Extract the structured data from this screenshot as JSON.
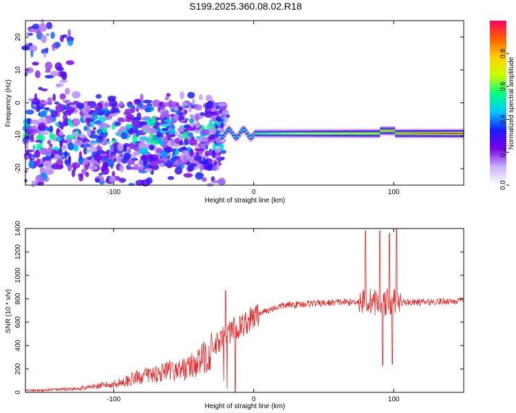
{
  "title": "S199.2025.360.08.02.R18",
  "chart_data": [
    {
      "type": "heatmap",
      "name": "spectrogram",
      "xlabel": "Height of straight line (km)",
      "ylabel": "Frequency (Hz)",
      "xlim": [
        -163,
        150
      ],
      "ylim": [
        -25,
        25
      ],
      "xticks": [
        -100,
        0,
        100
      ],
      "yticks": [
        20,
        10,
        0,
        -10,
        -20
      ],
      "colorbar": {
        "label": "Normalized spectral amplitude",
        "range": [
          0,
          1
        ],
        "ticks": [
          "0.0",
          "0.2",
          "0.4",
          "0.6",
          "0.8"
        ],
        "colors": [
          "#ffffff",
          "#c9b4ff",
          "#7a00e6",
          "#1a1aff",
          "#00c8ff",
          "#00ff80",
          "#c8ff00",
          "#ffd000",
          "#ff6000",
          "#ff0060"
        ]
      },
      "features": {
        "noisy_region_x": [
          -163,
          -25
        ],
        "noisy_freq_band_hz": [
          -20,
          0
        ],
        "tone_region_x": [
          -25,
          150
        ],
        "tone_freq_hz": -9.3,
        "tone_peak_amplitude": 0.95
      }
    },
    {
      "type": "line",
      "name": "snr",
      "xlabel": "Height of straight line (km)",
      "ylabel": "SNR (10 * v/v)",
      "xlim": [
        -163,
        150
      ],
      "ylim": [
        0,
        1400
      ],
      "xticks": [
        -100,
        0,
        100
      ],
      "yticks": [
        0,
        200,
        400,
        600,
        800,
        1000,
        1200,
        1400
      ],
      "color": "#ee2222",
      "series": [
        {
          "name": "SNR",
          "x": [
            -163,
            -150,
            -140,
            -130,
            -120,
            -110,
            -100,
            -90,
            -80,
            -70,
            -60,
            -50,
            -40,
            -35,
            -30,
            -25,
            -20,
            -15,
            -10,
            -5,
            0,
            5,
            10,
            20,
            30,
            40,
            50,
            60,
            70,
            75,
            80,
            85,
            90,
            95,
            100,
            105,
            110,
            120,
            130,
            140,
            150
          ],
          "y": [
            15,
            18,
            25,
            30,
            40,
            55,
            70,
            100,
            140,
            160,
            180,
            200,
            250,
            300,
            350,
            420,
            480,
            530,
            560,
            600,
            640,
            680,
            700,
            740,
            750,
            760,
            760,
            770,
            770,
            780,
            770,
            780,
            760,
            770,
            780,
            770,
            770,
            770,
            775,
            780,
            780
          ]
        }
      ],
      "amplitude_spikes": [
        {
          "x": 80,
          "y": 1380
        },
        {
          "x": 90,
          "y": 1380
        },
        {
          "x": 97,
          "y": 1360
        },
        {
          "x": 102,
          "y": 1400
        },
        {
          "x": 92,
          "y": 230
        },
        {
          "x": 99,
          "y": 240
        },
        {
          "x": -20,
          "y": 870
        },
        {
          "x": -13,
          "y": 0
        }
      ]
    }
  ]
}
